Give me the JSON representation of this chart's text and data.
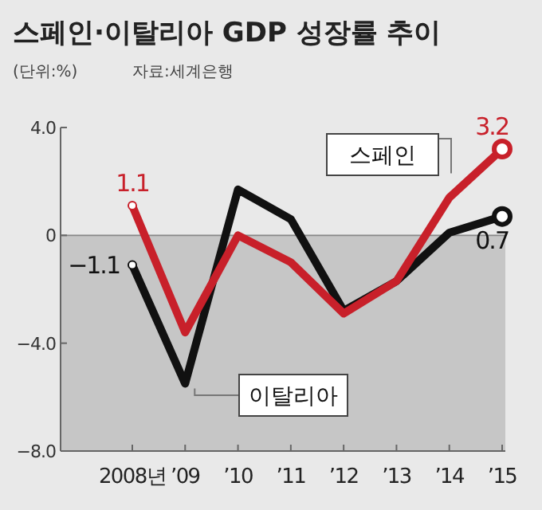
{
  "chart_data": {
    "type": "line",
    "title": "스페인·이탈리아 GDP 성장률 추이",
    "subtitle": "(단위:%)",
    "annotations": [
      "자료:세계은행"
    ],
    "categories": [
      "2008년",
      "’09",
      "’10",
      "’11",
      "’12",
      "’13",
      "’14",
      "’15"
    ],
    "series": [
      {
        "name": "이탈리아",
        "color": "#111111",
        "values": [
          -1.1,
          -5.5,
          1.7,
          0.6,
          -2.8,
          -1.7,
          0.1,
          0.7
        ],
        "value_labels": [
          "−1.1",
          null,
          null,
          null,
          null,
          null,
          null,
          "0.7"
        ]
      },
      {
        "name": "스페인",
        "color": "#c8202a",
        "values": [
          1.1,
          -3.6,
          0.0,
          -1.0,
          -2.9,
          -1.7,
          1.4,
          3.2
        ],
        "value_labels": [
          "1.1",
          null,
          null,
          null,
          null,
          null,
          null,
          "3.2"
        ]
      }
    ],
    "ylim": [
      -8,
      4
    ],
    "yticks": [
      {
        "value": 4,
        "label": "4.0"
      },
      0,
      {
        "value": -4,
        "label": "−4.0"
      },
      {
        "value": -8,
        "label": "−8.0"
      }
    ],
    "bands": [
      {
        "axis": "y",
        "from": -8,
        "to": 0,
        "color": "#c6c6c6"
      }
    ],
    "ref_lines": [
      {
        "axis": "y",
        "value": 0,
        "color": "#888888"
      }
    ],
    "legend": false
  }
}
